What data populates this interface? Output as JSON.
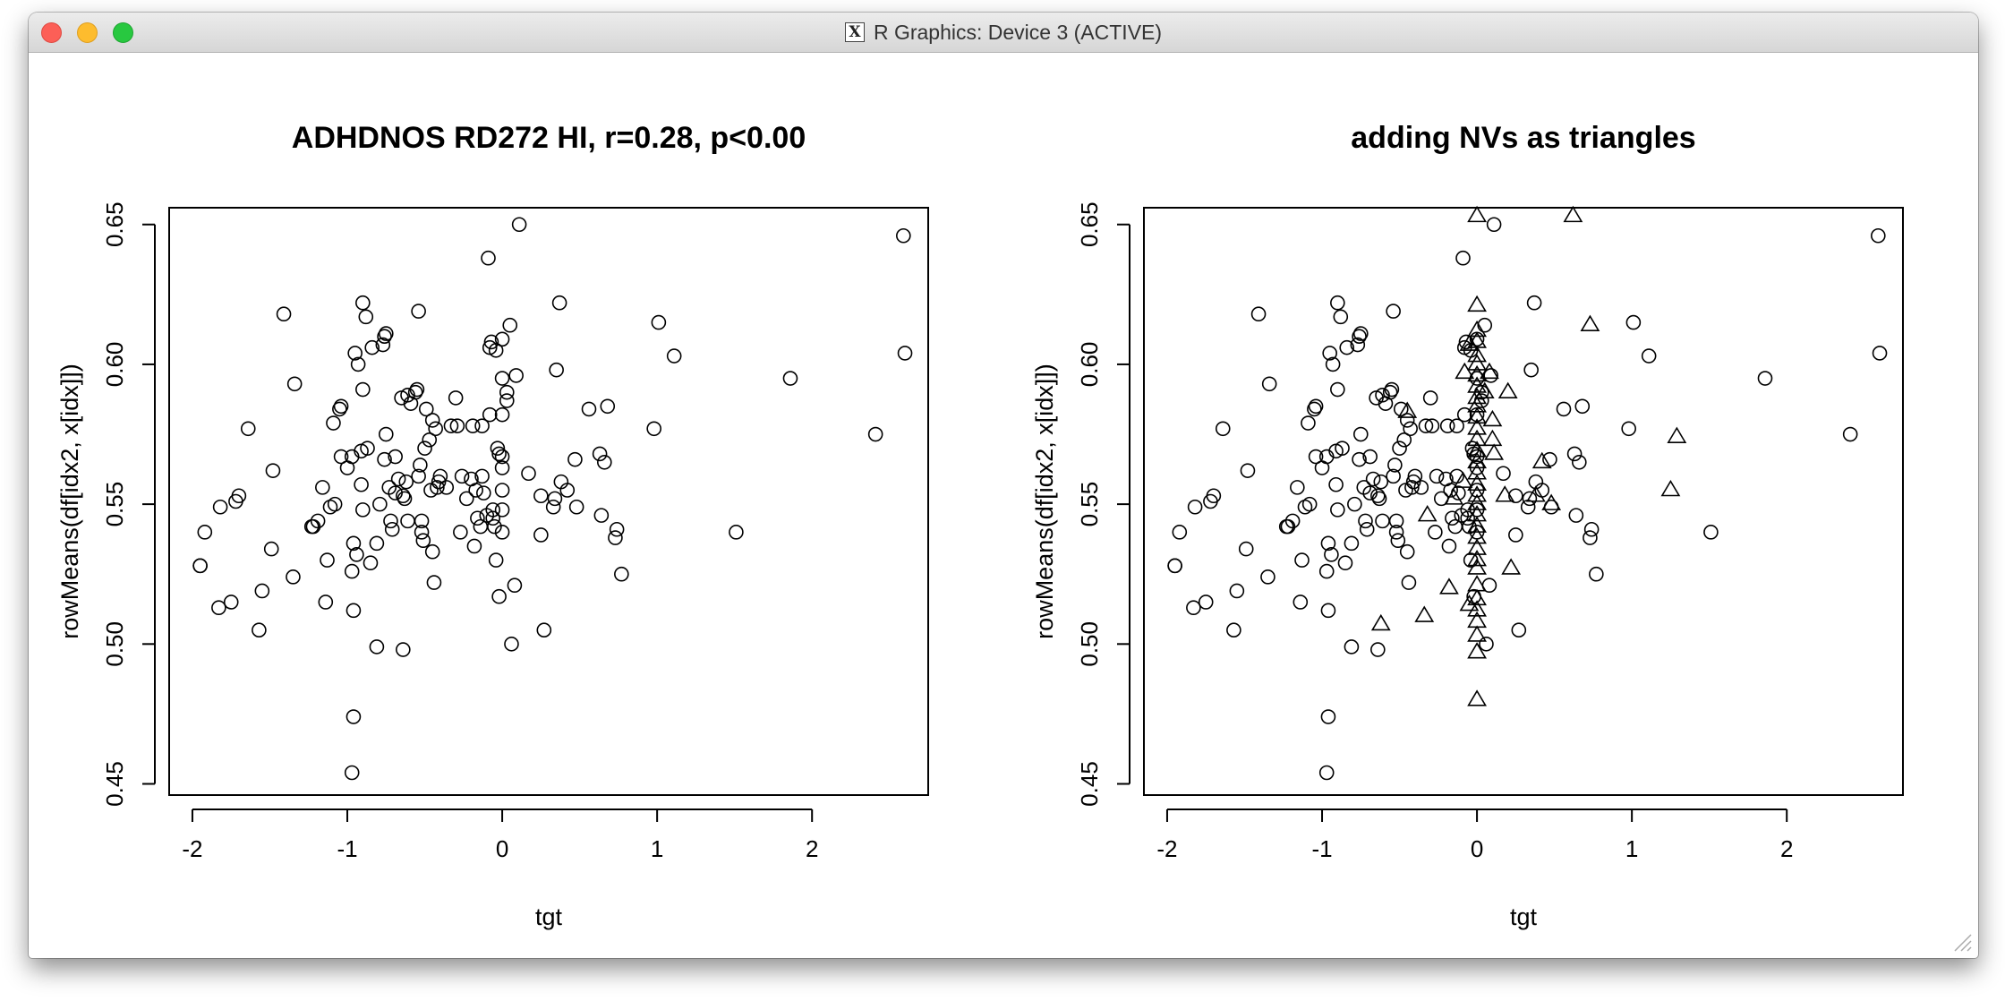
{
  "window": {
    "title": "R Graphics: Device 3 (ACTIVE)",
    "icon": "x11-icon"
  },
  "chart_data": [
    {
      "type": "scatter",
      "title": "ADHDNOS RD272 HI, r=0.28, p<0.00",
      "xlabel": "tgt",
      "ylabel": "rowMeans(df[idx2, x[idx]])",
      "xlim": [
        -2.15,
        2.75
      ],
      "ylim": [
        0.446,
        0.656
      ],
      "xticks": [
        -2,
        -1,
        0,
        1,
        2
      ],
      "yticks": [
        0.45,
        0.5,
        0.55,
        0.6,
        0.65
      ],
      "grid": false,
      "series": [
        {
          "marker": "circle",
          "points": [
            [
              -1.95,
              0.528
            ],
            [
              -1.95,
              0.528
            ],
            [
              -1.92,
              0.54
            ],
            [
              -1.83,
              0.513
            ],
            [
              -1.82,
              0.549
            ],
            [
              -1.75,
              0.515
            ],
            [
              -1.72,
              0.551
            ],
            [
              -1.7,
              0.553
            ],
            [
              -1.64,
              0.577
            ],
            [
              -1.57,
              0.505
            ],
            [
              -1.55,
              0.519
            ],
            [
              -1.49,
              0.534
            ],
            [
              -1.48,
              0.562
            ],
            [
              -1.41,
              0.618
            ],
            [
              -1.35,
              0.524
            ],
            [
              -1.34,
              0.593
            ],
            [
              -1.23,
              0.542
            ],
            [
              -1.22,
              0.542
            ],
            [
              -1.19,
              0.544
            ],
            [
              -1.16,
              0.556
            ],
            [
              -1.14,
              0.515
            ],
            [
              -1.13,
              0.53
            ],
            [
              -1.11,
              0.549
            ],
            [
              -1.09,
              0.579
            ],
            [
              -1.08,
              0.55
            ],
            [
              -1.05,
              0.584
            ],
            [
              -1.04,
              0.585
            ],
            [
              -1.04,
              0.567
            ],
            [
              -1.0,
              0.563
            ],
            [
              -0.97,
              0.567
            ],
            [
              -0.97,
              0.526
            ],
            [
              -0.96,
              0.536
            ],
            [
              -0.96,
              0.512
            ],
            [
              -0.96,
              0.474
            ],
            [
              -0.97,
              0.454
            ],
            [
              -0.95,
              0.604
            ],
            [
              -0.94,
              0.532
            ],
            [
              -0.93,
              0.6
            ],
            [
              -0.91,
              0.569
            ],
            [
              -0.91,
              0.557
            ],
            [
              -0.9,
              0.548
            ],
            [
              -0.9,
              0.591
            ],
            [
              -0.9,
              0.622
            ],
            [
              -0.88,
              0.617
            ],
            [
              -0.87,
              0.57
            ],
            [
              -0.85,
              0.529
            ],
            [
              -0.84,
              0.606
            ],
            [
              -0.81,
              0.536
            ],
            [
              -0.81,
              0.499
            ],
            [
              -0.79,
              0.55
            ],
            [
              -0.77,
              0.607
            ],
            [
              -0.76,
              0.61
            ],
            [
              -0.76,
              0.566
            ],
            [
              -0.75,
              0.611
            ],
            [
              -0.75,
              0.575
            ],
            [
              -0.73,
              0.556
            ],
            [
              -0.72,
              0.544
            ],
            [
              -0.71,
              0.541
            ],
            [
              -0.69,
              0.567
            ],
            [
              -0.69,
              0.554
            ],
            [
              -0.67,
              0.559
            ],
            [
              -0.65,
              0.588
            ],
            [
              -0.64,
              0.498
            ],
            [
              -0.64,
              0.553
            ],
            [
              -0.63,
              0.552
            ],
            [
              -0.62,
              0.558
            ],
            [
              -0.61,
              0.589
            ],
            [
              -0.61,
              0.544
            ],
            [
              -0.59,
              0.586
            ],
            [
              -0.56,
              0.59
            ],
            [
              -0.55,
              0.591
            ],
            [
              -0.54,
              0.619
            ],
            [
              -0.54,
              0.56
            ],
            [
              -0.53,
              0.564
            ],
            [
              -0.52,
              0.544
            ],
            [
              -0.52,
              0.54
            ],
            [
              -0.51,
              0.537
            ],
            [
              -0.5,
              0.57
            ],
            [
              -0.49,
              0.584
            ],
            [
              -0.47,
              0.573
            ],
            [
              -0.46,
              0.555
            ],
            [
              -0.45,
              0.58
            ],
            [
              -0.45,
              0.533
            ],
            [
              -0.44,
              0.522
            ],
            [
              -0.43,
              0.577
            ],
            [
              -0.42,
              0.556
            ],
            [
              -0.41,
              0.558
            ],
            [
              -0.4,
              0.56
            ],
            [
              -0.36,
              0.556
            ],
            [
              -0.33,
              0.578
            ],
            [
              -0.3,
              0.588
            ],
            [
              -0.29,
              0.578
            ],
            [
              -0.27,
              0.54
            ],
            [
              -0.26,
              0.56
            ],
            [
              -0.23,
              0.552
            ],
            [
              -0.2,
              0.559
            ],
            [
              -0.19,
              0.578
            ],
            [
              -0.18,
              0.535
            ],
            [
              -0.17,
              0.555
            ],
            [
              -0.16,
              0.545
            ],
            [
              -0.14,
              0.542
            ],
            [
              -0.13,
              0.578
            ],
            [
              -0.13,
              0.56
            ],
            [
              -0.12,
              0.554
            ],
            [
              -0.1,
              0.546
            ],
            [
              -0.09,
              0.638
            ],
            [
              -0.08,
              0.606
            ],
            [
              -0.08,
              0.582
            ],
            [
              -0.07,
              0.608
            ],
            [
              -0.06,
              0.548
            ],
            [
              -0.06,
              0.545
            ],
            [
              -0.05,
              0.542
            ],
            [
              -0.04,
              0.53
            ],
            [
              -0.04,
              0.605
            ],
            [
              -0.03,
              0.57
            ],
            [
              -0.02,
              0.568
            ],
            [
              -0.02,
              0.517
            ],
            [
              0.0,
              0.609
            ],
            [
              0.0,
              0.595
            ],
            [
              0.0,
              0.582
            ],
            [
              0.0,
              0.567
            ],
            [
              0.0,
              0.563
            ],
            [
              0.0,
              0.555
            ],
            [
              0.0,
              0.548
            ],
            [
              0.0,
              0.54
            ],
            [
              0.03,
              0.59
            ],
            [
              0.03,
              0.587
            ],
            [
              0.05,
              0.614
            ],
            [
              0.06,
              0.5
            ],
            [
              0.08,
              0.521
            ],
            [
              0.09,
              0.596
            ],
            [
              0.11,
              0.65
            ],
            [
              0.17,
              0.561
            ],
            [
              0.25,
              0.539
            ],
            [
              0.25,
              0.553
            ],
            [
              0.27,
              0.505
            ],
            [
              0.33,
              0.549
            ],
            [
              0.34,
              0.552
            ],
            [
              0.35,
              0.598
            ],
            [
              0.37,
              0.622
            ],
            [
              0.38,
              0.558
            ],
            [
              0.42,
              0.555
            ],
            [
              0.47,
              0.566
            ],
            [
              0.48,
              0.549
            ],
            [
              0.56,
              0.584
            ],
            [
              0.63,
              0.568
            ],
            [
              0.64,
              0.546
            ],
            [
              0.66,
              0.565
            ],
            [
              0.68,
              0.585
            ],
            [
              0.73,
              0.538
            ],
            [
              0.74,
              0.541
            ],
            [
              0.77,
              0.525
            ],
            [
              0.98,
              0.577
            ],
            [
              1.01,
              0.615
            ],
            [
              1.11,
              0.603
            ],
            [
              1.51,
              0.54
            ],
            [
              1.86,
              0.595
            ],
            [
              2.41,
              0.575
            ],
            [
              2.59,
              0.646
            ],
            [
              2.6,
              0.604
            ]
          ]
        }
      ]
    },
    {
      "type": "scatter",
      "title": "adding NVs as triangles",
      "xlabel": "tgt",
      "ylabel": "rowMeans(df[idx2, x[idx]])",
      "xlim": [
        -2.15,
        2.75
      ],
      "ylim": [
        0.446,
        0.656
      ],
      "xticks": [
        -2,
        -1,
        0,
        1,
        2
      ],
      "yticks": [
        0.45,
        0.5,
        0.55,
        0.6,
        0.65
      ],
      "grid": false,
      "series": [
        {
          "marker": "circle",
          "points_same_as_chart": 0
        },
        {
          "marker": "triangle",
          "points": [
            [
              0.0,
              0.653
            ],
            [
              0.0,
              0.621
            ],
            [
              0.0,
              0.612
            ],
            [
              0.0,
              0.608
            ],
            [
              0.0,
              0.603
            ],
            [
              0.0,
              0.6
            ],
            [
              0.0,
              0.596
            ],
            [
              0.0,
              0.592
            ],
            [
              0.0,
              0.588
            ],
            [
              0.0,
              0.585
            ],
            [
              0.0,
              0.581
            ],
            [
              0.0,
              0.577
            ],
            [
              0.0,
              0.573
            ],
            [
              0.0,
              0.569
            ],
            [
              0.0,
              0.565
            ],
            [
              0.0,
              0.561
            ],
            [
              0.0,
              0.557
            ],
            [
              0.0,
              0.553
            ],
            [
              0.0,
              0.55
            ],
            [
              0.0,
              0.546
            ],
            [
              0.0,
              0.542
            ],
            [
              0.0,
              0.538
            ],
            [
              0.0,
              0.534
            ],
            [
              0.0,
              0.53
            ],
            [
              0.0,
              0.527
            ],
            [
              0.0,
              0.521
            ],
            [
              0.0,
              0.516
            ],
            [
              0.0,
              0.512
            ],
            [
              0.0,
              0.508
            ],
            [
              0.0,
              0.503
            ],
            [
              0.0,
              0.497
            ],
            [
              0.0,
              0.48
            ],
            [
              -0.05,
              0.607
            ],
            [
              -0.05,
              0.514
            ],
            [
              -0.08,
              0.597
            ],
            [
              -0.09,
              0.558
            ],
            [
              -0.15,
              0.552
            ],
            [
              -0.18,
              0.52
            ],
            [
              -0.32,
              0.546
            ],
            [
              -0.34,
              0.51
            ],
            [
              -0.45,
              0.583
            ],
            [
              -0.62,
              0.507
            ],
            [
              0.05,
              0.59
            ],
            [
              0.08,
              0.597
            ],
            [
              0.1,
              0.58
            ],
            [
              0.1,
              0.573
            ],
            [
              0.11,
              0.568
            ],
            [
              0.18,
              0.553
            ],
            [
              0.2,
              0.59
            ],
            [
              0.22,
              0.527
            ],
            [
              0.38,
              0.553
            ],
            [
              0.42,
              0.565
            ],
            [
              0.48,
              0.55
            ],
            [
              0.62,
              0.653
            ],
            [
              0.73,
              0.614
            ],
            [
              1.25,
              0.555
            ],
            [
              1.29,
              0.574
            ]
          ]
        }
      ]
    }
  ]
}
